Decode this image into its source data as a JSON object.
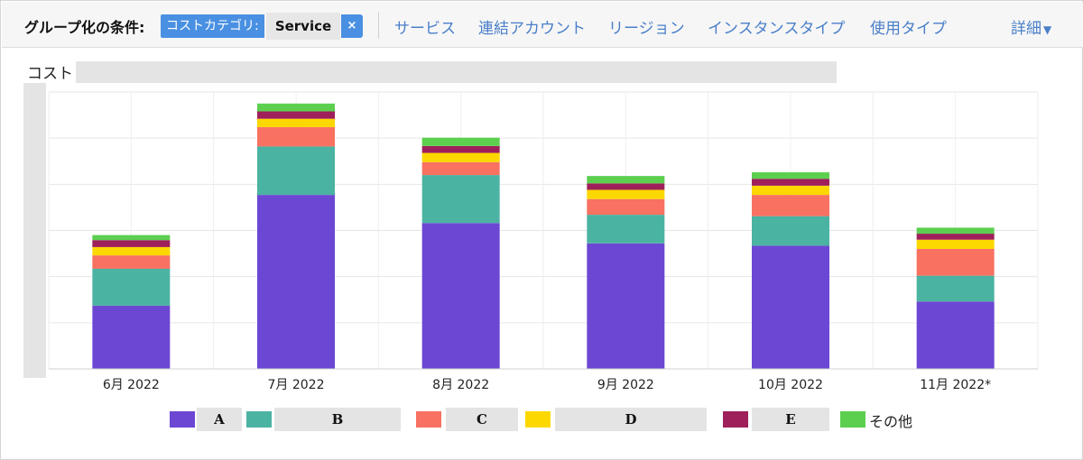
{
  "toolbar": {
    "group_by_label": "グループ化の条件:",
    "chip_key": "コストカテゴリ:",
    "chip_value": "Service",
    "chip_remove_icon": "×",
    "links": [
      "サービス",
      "連結アカウント",
      "リージョン",
      "インスタンスタイプ",
      "使用タイプ"
    ],
    "details_label": "詳細",
    "details_icon": "▼"
  },
  "chart_data": {
    "type": "bar",
    "stacked": true,
    "ylabel": "コスト",
    "categories": [
      "6月 2022",
      "7月 2022",
      "8月 2022",
      "9月 2022",
      "10月 2022",
      "11月 2022*"
    ],
    "ylim": [
      0,
      6
    ],
    "grid": true,
    "legend_position": "bottom",
    "series": [
      {
        "name": "A",
        "color": "#6c47d4",
        "values": [
          1.37,
          3.77,
          3.16,
          2.72,
          2.67,
          1.46
        ]
      },
      {
        "name": "B",
        "color": "#4bb3a2",
        "values": [
          0.8,
          1.05,
          1.04,
          0.62,
          0.64,
          0.56
        ]
      },
      {
        "name": "C",
        "color": "#f87161",
        "values": [
          0.29,
          0.42,
          0.28,
          0.34,
          0.46,
          0.58
        ]
      },
      {
        "name": "D",
        "color": "#fcd800",
        "values": [
          0.18,
          0.18,
          0.2,
          0.2,
          0.2,
          0.2
        ]
      },
      {
        "name": "E",
        "color": "#9e1f5a",
        "values": [
          0.15,
          0.16,
          0.15,
          0.14,
          0.15,
          0.13
        ]
      },
      {
        "name": "その他",
        "color": "#5ccf4f",
        "values": [
          0.11,
          0.17,
          0.18,
          0.16,
          0.14,
          0.13
        ]
      }
    ]
  }
}
